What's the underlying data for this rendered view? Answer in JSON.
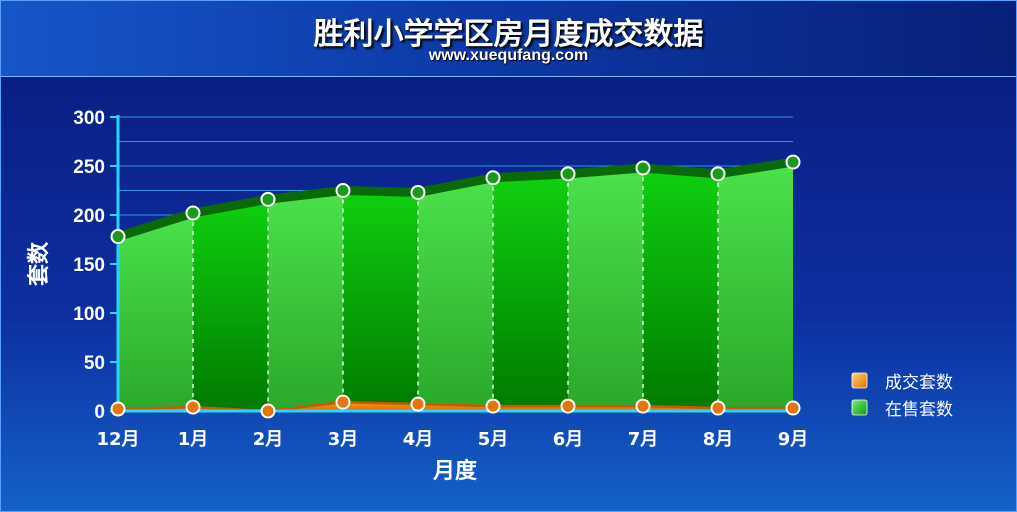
{
  "chart_data": {
    "type": "area",
    "title": "胜利小学学区房月度成交数据",
    "subtitle": "www.xuequfang.com",
    "xlabel": "月度",
    "ylabel": "套数",
    "ylim": [
      0,
      300
    ],
    "yticks": [
      "0",
      "50",
      "100",
      "150",
      "200",
      "250",
      "300"
    ],
    "categories": [
      "12月",
      "1月",
      "2月",
      "3月",
      "4月",
      "5月",
      "6月",
      "7月",
      "8月",
      "9月"
    ],
    "series": [
      {
        "name": "成交套数",
        "color": "#f08a00",
        "values": [
          2,
          4,
          0,
          9,
          7,
          5,
          5,
          5,
          3,
          3
        ]
      },
      {
        "name": "在售套数",
        "color": "#1fbf1f",
        "values": [
          178,
          202,
          216,
          225,
          223,
          238,
          242,
          248,
          242,
          254
        ]
      }
    ],
    "legend_position": "right",
    "grid": true
  }
}
